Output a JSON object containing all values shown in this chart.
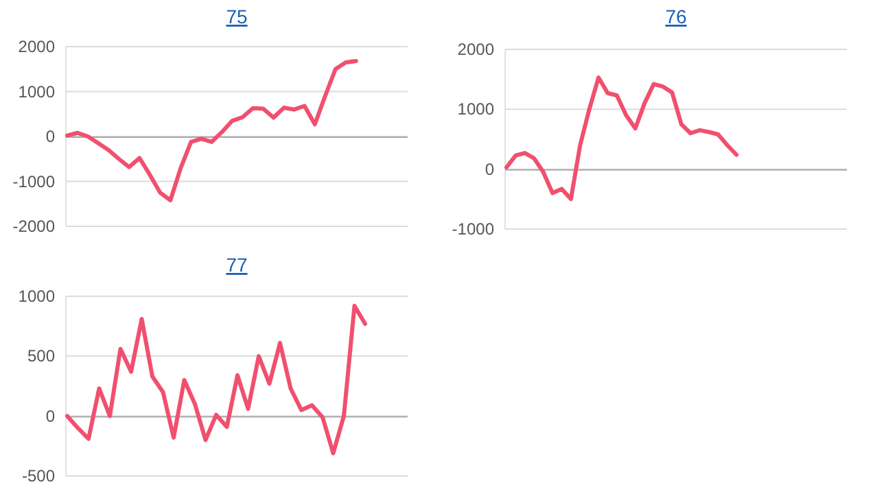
{
  "chart_data": [
    {
      "type": "line",
      "title": "75",
      "categories": [
        null,
        null,
        null,
        null,
        null,
        null,
        null,
        null,
        null,
        null,
        null,
        null,
        null,
        null,
        null,
        null,
        null,
        null,
        null,
        null,
        null,
        null,
        null,
        null,
        null,
        null,
        null,
        null,
        null,
        null,
        null,
        null,
        null,
        null
      ],
      "series": [
        {
          "color": "#f0506e",
          "values": [
            20,
            80,
            0,
            -150,
            -300,
            -500,
            -680,
            -480,
            -850,
            -1250,
            -1420,
            -700,
            -120,
            -50,
            -120,
            100,
            350,
            430,
            630,
            620,
            420,
            640,
            600,
            680,
            270,
            900,
            1500,
            1650,
            1680,
            null,
            null,
            null,
            null,
            null
          ]
        }
      ],
      "ylim": [
        -2000,
        2000
      ],
      "yticks": [
        -2000,
        -1000,
        0,
        1000,
        2000
      ],
      "grid": "y",
      "marker": "none",
      "line_style": "solid"
    },
    {
      "type": "line",
      "title": "76",
      "categories": [
        null,
        null,
        null,
        null,
        null,
        null,
        null,
        null,
        null,
        null,
        null,
        null,
        null,
        null,
        null,
        null,
        null,
        null,
        null,
        null,
        null,
        null,
        null,
        null,
        null,
        null,
        null,
        null,
        null,
        null,
        null,
        null,
        null,
        null,
        null,
        null,
        null,
        null
      ],
      "series": [
        {
          "color": "#f0506e",
          "values": [
            30,
            230,
            270,
            180,
            -50,
            -400,
            -330,
            -500,
            400,
            1000,
            1530,
            1270,
            1230,
            900,
            680,
            1100,
            1420,
            1380,
            1280,
            750,
            600,
            650,
            620,
            580,
            400,
            240,
            null,
            null,
            null,
            null,
            null,
            null,
            null,
            null,
            null,
            null,
            null,
            null
          ]
        }
      ],
      "ylim": [
        -1000,
        2000
      ],
      "yticks": [
        -1000,
        0,
        1000,
        2000
      ],
      "grid": "y",
      "marker": "none",
      "line_style": "solid"
    },
    {
      "type": "line",
      "title": "77",
      "categories": [
        null,
        null,
        null,
        null,
        null,
        null,
        null,
        null,
        null,
        null,
        null,
        null,
        null,
        null,
        null,
        null,
        null,
        null,
        null,
        null,
        null,
        null,
        null,
        null,
        null,
        null,
        null,
        null,
        null,
        null,
        null,
        null,
        null
      ],
      "series": [
        {
          "color": "#f0506e",
          "values": [
            0,
            -100,
            -190,
            230,
            0,
            560,
            370,
            810,
            330,
            200,
            -180,
            300,
            100,
            -200,
            10,
            -90,
            340,
            60,
            500,
            270,
            610,
            230,
            50,
            90,
            -10,
            -310,
            0,
            920,
            770,
            null,
            null,
            null,
            null
          ]
        }
      ],
      "ylim": [
        -500,
        1000
      ],
      "yticks": [
        -500,
        0,
        500,
        1000
      ],
      "grid": "y",
      "marker": "none",
      "line_style": "solid"
    }
  ]
}
